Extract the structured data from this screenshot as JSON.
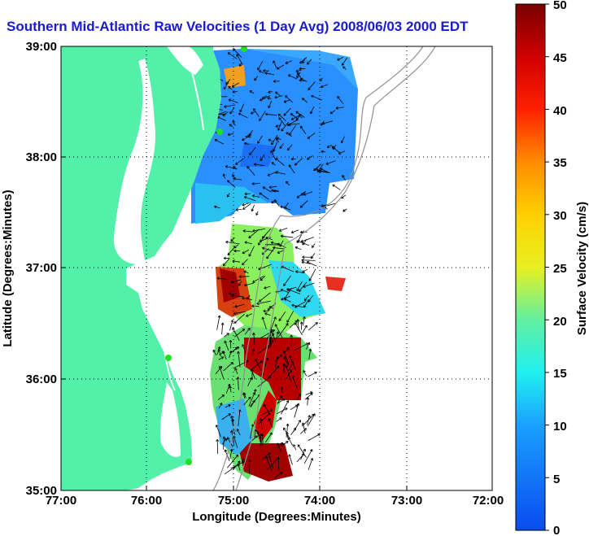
{
  "title": "Southern Mid-Atlantic Raw Velocities (1 Day Avg) 2008/06/03 2000 EDT",
  "map": {
    "xlabel": "Longitude (Degrees:Minutes)",
    "ylabel": "Latitude (Degrees:Minutes)",
    "x_ticks": [
      "77:00",
      "76:00",
      "75:00",
      "74:00",
      "73:00",
      "72:00"
    ],
    "y_ticks": [
      "39:00",
      "38:00",
      "37:00",
      "36:00",
      "35:00"
    ],
    "land_color": "#52f0a8",
    "grid": true
  },
  "colorbar": {
    "label": "Surface Velocity (cm/s)",
    "ticks": [
      "50",
      "45",
      "40",
      "35",
      "30",
      "25",
      "20",
      "15",
      "10",
      "5",
      "0"
    ],
    "range": [
      0,
      50
    ]
  }
}
